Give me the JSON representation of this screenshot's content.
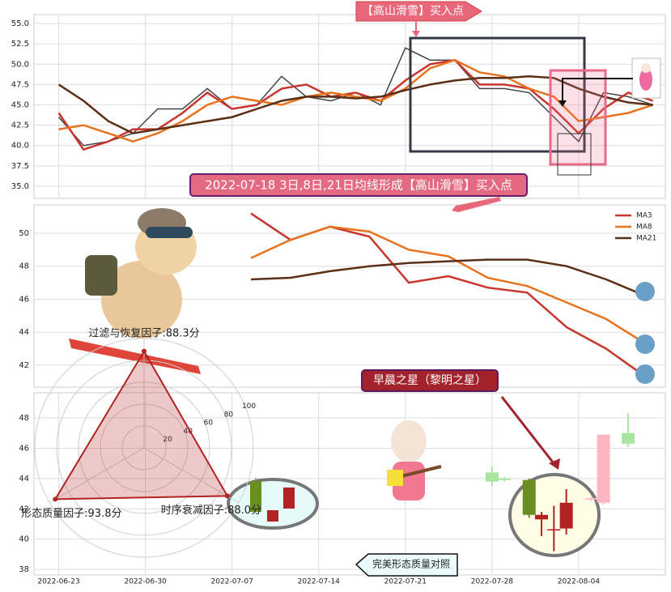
{
  "chart_data": [
    {
      "type": "line",
      "annotations": [
        "【高山滑雪】买入点"
      ],
      "x": [
        "2022-06-23",
        "2022-06-25",
        "2022-06-27",
        "2022-06-29",
        "2022-07-01",
        "2022-07-03",
        "2022-07-05",
        "2022-07-07",
        "2022-07-09",
        "2022-07-11",
        "2022-07-13",
        "2022-07-15",
        "2022-07-17",
        "2022-07-19",
        "2022-07-21",
        "2022-07-23",
        "2022-07-25",
        "2022-07-27",
        "2022-07-29",
        "2022-07-31",
        "2022-08-02",
        "2022-08-04",
        "2022-08-06",
        "2022-08-08",
        "2022-08-10"
      ],
      "xlim": [
        "2022-06-21",
        "2022-08-11"
      ],
      "ylim": [
        33.5,
        56.1
      ],
      "yticks": [
        {
          "value": 35,
          "label": "35.0"
        },
        {
          "value": 37.5,
          "label": "37.5"
        },
        {
          "value": 40,
          "label": "40.0"
        },
        {
          "value": 42.5,
          "label": "42.5"
        },
        {
          "value": 45,
          "label": "45.0"
        },
        {
          "value": 47.5,
          "label": "47.5"
        },
        {
          "value": 50,
          "label": "50.0"
        },
        {
          "value": 52.5,
          "label": "52.5"
        },
        {
          "value": 55,
          "label": "55.0"
        }
      ],
      "grid": true,
      "series": [
        {
          "color": "#444444",
          "values": [
            43.5,
            40,
            40.5,
            41.5,
            44.5,
            44.5,
            47,
            44.5,
            45,
            48.5,
            46,
            45.5,
            46.5,
            45,
            52,
            50.5,
            50.5,
            47,
            47,
            46.5,
            43.5,
            40.5,
            46.5,
            46,
            45
          ]
        },
        {
          "color": "#c8362e",
          "values": [
            44,
            39.5,
            40.5,
            42,
            42,
            44,
            46.5,
            44.5,
            45,
            47,
            47.5,
            46,
            46.5,
            45.5,
            48,
            50,
            50.5,
            47.5,
            47.5,
            47,
            44.5,
            41.5,
            44.5,
            46.5,
            45.5
          ]
        },
        {
          "color": "#e8731e",
          "values": [
            42,
            42.5,
            41.5,
            40.5,
            41.5,
            43,
            45,
            46,
            45.5,
            45,
            46,
            46.5,
            46,
            45.5,
            47,
            49.5,
            50.5,
            49,
            48.5,
            47,
            46,
            43,
            43.5,
            44,
            45
          ]
        },
        {
          "color": "#5a2f16",
          "values": [
            47.5,
            45.5,
            43,
            41.5,
            42,
            42.5,
            43,
            43.5,
            44.5,
            45.5,
            46,
            46,
            45.8,
            46,
            46.8,
            47.5,
            48,
            48.3,
            48.3,
            48.5,
            48.3,
            47,
            46,
            45.3,
            45
          ]
        }
      ]
    },
    {
      "type": "line",
      "annotations": [
        "2022-07-18 3日,8日,21日均线形成【高山滑雪】买入点"
      ],
      "x": [
        "2022-07-20",
        "2022-07-22",
        "2022-07-24",
        "2022-07-26",
        "2022-07-28",
        "2022-07-30",
        "2022-08-01",
        "2022-08-03",
        "2022-08-05",
        "2022-08-07",
        "2022-08-09"
      ],
      "xlim": [
        "2022-07-09",
        "2022-08-10"
      ],
      "ylim": [
        40.67,
        51.72
      ],
      "yticks": [
        42,
        44,
        46,
        48,
        50
      ],
      "grid": true,
      "legend": "upper right",
      "series": [
        {
          "name": "MA3",
          "color": "#c8362e",
          "values": [
            51.2,
            49.6,
            50.4,
            49.8,
            47.0,
            47.4,
            46.7,
            46.4,
            44.3,
            43.0,
            41.3
          ]
        },
        {
          "name": "MA8",
          "color": "#e8731e",
          "values": [
            48.5,
            49.6,
            50.4,
            50.1,
            49.0,
            48.6,
            47.3,
            46.8,
            45.8,
            44.8,
            43.3
          ]
        },
        {
          "name": "MA21",
          "color": "#5a2f16",
          "values": [
            47.2,
            47.3,
            47.7,
            48.0,
            48.2,
            48.3,
            48.4,
            48.4,
            48.0,
            47.2,
            46.2
          ]
        }
      ]
    },
    {
      "type": "candlestick",
      "annotations": [
        "早晨之星（黎明之星）",
        "完美形态质量对照"
      ],
      "x": [
        "2022-07-28",
        "2022-07-29",
        "2022-07-31",
        "2022-08-01",
        "2022-08-02",
        "2022-08-03",
        "2022-08-05",
        "2022-08-06",
        "2022-08-08"
      ],
      "open": [
        44.4,
        44.0,
        43.9,
        41.3,
        40.6,
        40.7,
        42.6,
        42.4,
        47.0
      ],
      "high": [
        44.8,
        44.1,
        44.0,
        41.8,
        42.2,
        43.3,
        42.8,
        46.9,
        48.3
      ],
      "low": [
        43.5,
        43.8,
        41.4,
        40.2,
        39.2,
        40.3,
        42.5,
        42.3,
        46.1
      ],
      "close": [
        43.8,
        43.9,
        41.6,
        41.6,
        40.65,
        42.4,
        42.7,
        46.9,
        46.3
      ],
      "colors": [
        "#a8e6a0",
        "#a8e6a0",
        "#6b8e23",
        "#b22222",
        "#b22222",
        "#b22222",
        "#ffc0cb",
        "#ffb6c1",
        "#a8e6a0"
      ],
      "xlim": [
        "2022-06-21",
        "2022-08-11"
      ],
      "xticks": [
        "2022-06-23",
        "2022-06-30",
        "2022-07-07",
        "2022-07-14",
        "2022-07-21",
        "2022-07-28",
        "2022-08-04"
      ],
      "ylim": [
        37.63,
        49.66
      ],
      "yticks": [
        38,
        40,
        42,
        44,
        46,
        48
      ],
      "grid": true
    },
    {
      "type": "radar",
      "values": [
        88.3,
        88.0,
        93.8
      ],
      "value_labels": [
        "过滤与恢复因子:88.3分",
        "时序衰减因子:88.0分",
        "形态质量因子:93.8分"
      ],
      "rlim": [
        0,
        100
      ],
      "rticks": [
        20,
        40,
        60,
        80,
        100
      ],
      "color": "#b22222"
    }
  ]
}
